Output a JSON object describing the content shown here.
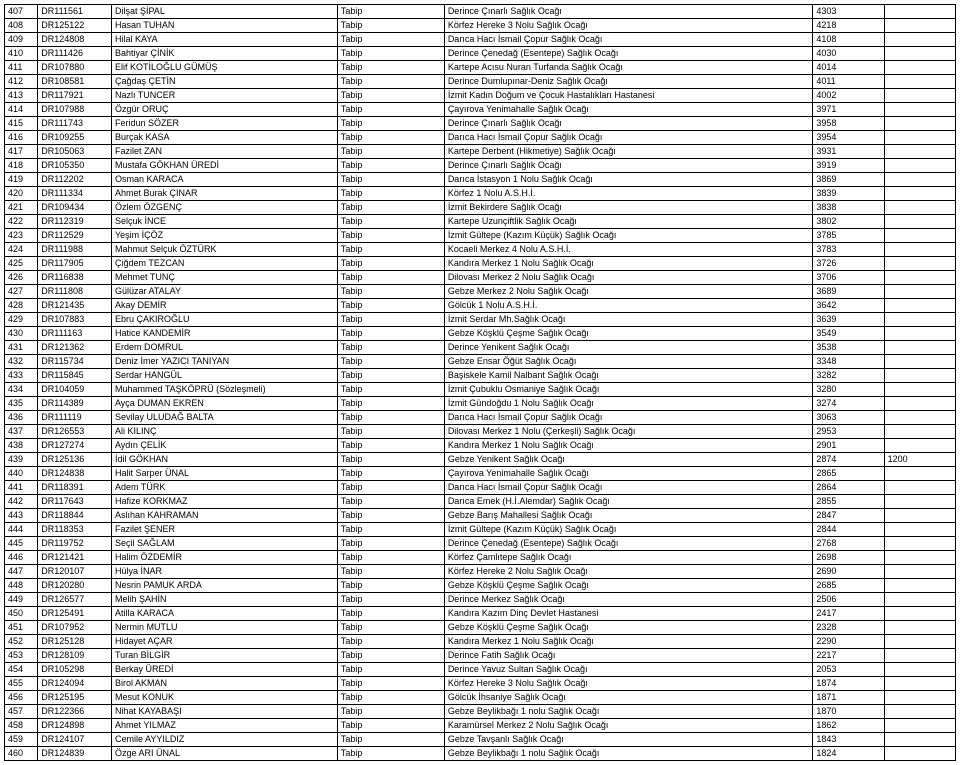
{
  "rows": [
    {
      "seq": "407",
      "id": "DR111561",
      "name": "Dilşat ŞİPAL",
      "title": "Tabip",
      "place": "Derince Çınarlı Sağlık Ocağı",
      "n1": "4303",
      "n2": ""
    },
    {
      "seq": "408",
      "id": "DR125122",
      "name": "Hasan TUHAN",
      "title": "Tabip",
      "place": "Körfez Hereke 3 Nolu Sağlık Ocağı",
      "n1": "4218",
      "n2": ""
    },
    {
      "seq": "409",
      "id": "DR124808",
      "name": "Hilal KAYA",
      "title": "Tabip",
      "place": "Darıca Hacı İsmail Çopur Sağlık Ocağı",
      "n1": "4108",
      "n2": ""
    },
    {
      "seq": "410",
      "id": "DR111426",
      "name": "Bahtiyar ÇİNİK",
      "title": "Tabip",
      "place": "Derince Çenedağ (Esentepe) Sağlık Ocağı",
      "n1": "4030",
      "n2": ""
    },
    {
      "seq": "411",
      "id": "DR107880",
      "name": "Elif KOTİLOĞLU GÜMÜŞ",
      "title": "Tabip",
      "place": "Kartepe Acısu Nuran Turfanda Sağlık Ocağı",
      "n1": "4014",
      "n2": ""
    },
    {
      "seq": "412",
      "id": "DR108581",
      "name": "Çağdaş ÇETİN",
      "title": "Tabip",
      "place": "Derince Dumlupınar-Deniz Sağlık Ocağı",
      "n1": "4011",
      "n2": ""
    },
    {
      "seq": "413",
      "id": "DR117921",
      "name": "Nazlı TUNCER",
      "title": "Tabip",
      "place": "İzmit Kadın Doğum ve Çocuk Hastalıkları Hastanesi",
      "n1": "4002",
      "n2": ""
    },
    {
      "seq": "414",
      "id": "DR107988",
      "name": "Özgür ORUÇ",
      "title": "Tabip",
      "place": "Çayırova Yenimahalle Sağlık Ocağı",
      "n1": "3971",
      "n2": ""
    },
    {
      "seq": "415",
      "id": "DR111743",
      "name": "Feridun SÖZER",
      "title": "Tabip",
      "place": "Derince Çınarlı Sağlık Ocağı",
      "n1": "3958",
      "n2": ""
    },
    {
      "seq": "416",
      "id": "DR109255",
      "name": "Burçak KASA",
      "title": "Tabip",
      "place": "Darıca Hacı İsmail Çopur Sağlık Ocağı",
      "n1": "3954",
      "n2": ""
    },
    {
      "seq": "417",
      "id": "DR105063",
      "name": "Fazilet ZAN",
      "title": "Tabip",
      "place": "Kartepe Derbent (Hikmetiye) Sağlık Ocağı",
      "n1": "3931",
      "n2": ""
    },
    {
      "seq": "418",
      "id": "DR105350",
      "name": "Mustafa GÖKHAN ÜREDİ",
      "title": "Tabip",
      "place": "Derince Çınarlı Sağlık Ocağı",
      "n1": "3919",
      "n2": ""
    },
    {
      "seq": "419",
      "id": "DR112202",
      "name": "Osman KARACA",
      "title": "Tabip",
      "place": "Darıca İstasyon 1 Nolu Sağlık Ocağı",
      "n1": "3869",
      "n2": ""
    },
    {
      "seq": "420",
      "id": "DR111334",
      "name": "Ahmet Burak ÇINAR",
      "title": "Tabip",
      "place": "Körfez 1 Nolu A.S.H.İ.",
      "n1": "3839",
      "n2": ""
    },
    {
      "seq": "421",
      "id": "DR109434",
      "name": "Özlem ÖZGENÇ",
      "title": "Tabip",
      "place": "İzmit Bekirdere Sağlık Ocağı",
      "n1": "3838",
      "n2": ""
    },
    {
      "seq": "422",
      "id": "DR112319",
      "name": "Selçuk İNCE",
      "title": "Tabip",
      "place": "Kartepe Uzunçiftlik Sağlık Ocağı",
      "n1": "3802",
      "n2": ""
    },
    {
      "seq": "423",
      "id": "DR112529",
      "name": "Yeşim İÇÖZ",
      "title": "Tabip",
      "place": "İzmit Gültepe (Kazım Küçük) Sağlık Ocağı",
      "n1": "3785",
      "n2": ""
    },
    {
      "seq": "424",
      "id": "DR111988",
      "name": "Mahmut Selçuk ÖZTÜRK",
      "title": "Tabip",
      "place": "Kocaeli Merkez 4 Nolu A.S.H.İ.",
      "n1": "3783",
      "n2": ""
    },
    {
      "seq": "425",
      "id": "DR117905",
      "name": "Çiğdem TEZCAN",
      "title": "Tabip",
      "place": "Kandıra Merkez 1 Nolu Sağlık Ocağı",
      "n1": "3726",
      "n2": ""
    },
    {
      "seq": "426",
      "id": "DR116838",
      "name": "Mehmet TUNÇ",
      "title": "Tabip",
      "place": "Dilovası Merkez 2 Nolu Sağlık Ocağı",
      "n1": "3706",
      "n2": ""
    },
    {
      "seq": "427",
      "id": "DR111808",
      "name": "Gülüzar ATALAY",
      "title": "Tabip",
      "place": "Gebze Merkez 2 Nolu Sağlık Ocağı",
      "n1": "3689",
      "n2": ""
    },
    {
      "seq": "428",
      "id": "DR121435",
      "name": "Akay DEMİR",
      "title": "Tabip",
      "place": "Gölcük 1 Nolu A.S.H.İ.",
      "n1": "3642",
      "n2": ""
    },
    {
      "seq": "429",
      "id": "DR107883",
      "name": "Ebru ÇAKIROĞLU",
      "title": "Tabip",
      "place": "İzmit Serdar Mh.Sağlık Ocağı",
      "n1": "3639",
      "n2": ""
    },
    {
      "seq": "430",
      "id": "DR111163",
      "name": "Hatice KANDEMİR",
      "title": "Tabip",
      "place": "Gebze Köşklü Çeşme Sağlık Ocağı",
      "n1": "3549",
      "n2": ""
    },
    {
      "seq": "431",
      "id": "DR121362",
      "name": "Erdem DOMRUL",
      "title": "Tabip",
      "place": "Derince Yenikent Sağlık Ocağı",
      "n1": "3538",
      "n2": ""
    },
    {
      "seq": "432",
      "id": "DR115734",
      "name": "Deniz İmer YAZICI TANIYAN",
      "title": "Tabip",
      "place": "Gebze Ensar Öğüt Sağlık Ocağı",
      "n1": "3348",
      "n2": ""
    },
    {
      "seq": "433",
      "id": "DR115845",
      "name": "Serdar HANGÜL",
      "title": "Tabip",
      "place": "Başiskele Kamil Nalbant Sağlık Ocağı",
      "n1": "3282",
      "n2": ""
    },
    {
      "seq": "434",
      "id": "DR104059",
      "name": "Muhammed TAŞKÖPRÜ (Sözleşmeli)",
      "title": "Tabip",
      "place": "İzmit Çubuklu Osmaniye Sağlık Ocağı",
      "n1": "3280",
      "n2": ""
    },
    {
      "seq": "435",
      "id": "DR114389",
      "name": "Ayça DUMAN EKREN",
      "title": "Tabip",
      "place": "İzmit Gündoğdu 1 Nolu Sağlık Ocağı",
      "n1": "3274",
      "n2": ""
    },
    {
      "seq": "436",
      "id": "DR111119",
      "name": "Sevilay ULUDAĞ BALTA",
      "title": "Tabip",
      "place": "Darıca Hacı İsmail Çopur Sağlık Ocağı",
      "n1": "3063",
      "n2": ""
    },
    {
      "seq": "437",
      "id": "DR126553",
      "name": "Ali KILINÇ",
      "title": "Tabip",
      "place": "Dilovası Merkez 1 Nolu (Çerkeşli) Sağlık Ocağı",
      "n1": "2953",
      "n2": ""
    },
    {
      "seq": "438",
      "id": "DR127274",
      "name": "Aydın ÇELİK",
      "title": "Tabip",
      "place": "Kandıra Merkez 1 Nolu Sağlık Ocağı",
      "n1": "2901",
      "n2": ""
    },
    {
      "seq": "439",
      "id": "DR125136",
      "name": "İdil GÖKHAN",
      "title": "Tabip",
      "place": "Gebze Yenikent Sağlık Ocağı",
      "n1": "2874",
      "n2": "1200"
    },
    {
      "seq": "440",
      "id": "DR124838",
      "name": "Halit Sarper ÜNAL",
      "title": "Tabip",
      "place": "Çayırova Yenimahalle Sağlık Ocağı",
      "n1": "2865",
      "n2": ""
    },
    {
      "seq": "441",
      "id": "DR118391",
      "name": "Adem TÜRK",
      "title": "Tabip",
      "place": "Darıca Hacı İsmail Çopur Sağlık Ocağı",
      "n1": "2864",
      "n2": ""
    },
    {
      "seq": "442",
      "id": "DR117643",
      "name": "Hafize KORKMAZ",
      "title": "Tabip",
      "place": "Darıca Emek (H.İ.Alemdar) Sağlık Ocağı",
      "n1": "2855",
      "n2": ""
    },
    {
      "seq": "443",
      "id": "DR118844",
      "name": "Aslıhan KAHRAMAN",
      "title": "Tabip",
      "place": "Gebze Barış Mahallesi Sağlık Ocağı",
      "n1": "2847",
      "n2": ""
    },
    {
      "seq": "444",
      "id": "DR118353",
      "name": "Fazilet ŞENER",
      "title": "Tabip",
      "place": "İzmit Gültepe (Kazım Küçük) Sağlık Ocağı",
      "n1": "2844",
      "n2": ""
    },
    {
      "seq": "445",
      "id": "DR119752",
      "name": "Seçil SAĞLAM",
      "title": "Tabip",
      "place": "Derince Çenedağ (Esentepe) Sağlık Ocağı",
      "n1": "2768",
      "n2": ""
    },
    {
      "seq": "446",
      "id": "DR121421",
      "name": "Halim ÖZDEMİR",
      "title": "Tabip",
      "place": "Körfez Çamlıtepe Sağlık Ocağı",
      "n1": "2698",
      "n2": ""
    },
    {
      "seq": "447",
      "id": "DR120107",
      "name": "Hülya İNAR",
      "title": "Tabip",
      "place": "Körfez Hereke 2 Nolu Sağlık Ocağı",
      "n1": "2690",
      "n2": ""
    },
    {
      "seq": "448",
      "id": "DR120280",
      "name": "Nesrin PAMUK ARDA",
      "title": "Tabip",
      "place": "Gebze Köşklü Çeşme Sağlık Ocağı",
      "n1": "2685",
      "n2": ""
    },
    {
      "seq": "449",
      "id": "DR126577",
      "name": "Melih ŞAHİN",
      "title": "Tabip",
      "place": "Derince Merkez Sağlık Ocağı",
      "n1": "2506",
      "n2": ""
    },
    {
      "seq": "450",
      "id": "DR125491",
      "name": "Atilla KARACA",
      "title": "Tabip",
      "place": "Kandıra Kazım Dinç Devlet Hastanesi",
      "n1": "2417",
      "n2": ""
    },
    {
      "seq": "451",
      "id": "DR107952",
      "name": "Nermin MUTLU",
      "title": "Tabip",
      "place": "Gebze Köşklü Çeşme Sağlık Ocağı",
      "n1": "2328",
      "n2": ""
    },
    {
      "seq": "452",
      "id": "DR125128",
      "name": "Hidayet AÇAR",
      "title": "Tabip",
      "place": "Kandıra Merkez 1 Nolu Sağlık Ocağı",
      "n1": "2290",
      "n2": ""
    },
    {
      "seq": "453",
      "id": "DR128109",
      "name": "Turan BİLGİR",
      "title": "Tabip",
      "place": "Derince Fatih Sağlık Ocağı",
      "n1": "2217",
      "n2": ""
    },
    {
      "seq": "454",
      "id": "DR105298",
      "name": "Berkay ÜREDİ",
      "title": "Tabip",
      "place": "Derince Yavuz Sultan Sağlık Ocağı",
      "n1": "2053",
      "n2": ""
    },
    {
      "seq": "455",
      "id": "DR124094",
      "name": "Birol AKMAN",
      "title": "Tabip",
      "place": "Körfez Hereke 3 Nolu Sağlık Ocağı",
      "n1": "1874",
      "n2": ""
    },
    {
      "seq": "456",
      "id": "DR125195",
      "name": "Mesut KONUK",
      "title": "Tabip",
      "place": "Gölcük İhsaniye Sağlık Ocağı",
      "n1": "1871",
      "n2": ""
    },
    {
      "seq": "457",
      "id": "DR122366",
      "name": "Nihat KAYABAŞI",
      "title": "Tabip",
      "place": "Gebze Beylikbağı 1 nolu Sağlık Ocağı",
      "n1": "1870",
      "n2": ""
    },
    {
      "seq": "458",
      "id": "DR124898",
      "name": "Ahmet YILMAZ",
      "title": "Tabip",
      "place": "Karamürsel Merkez 2 Nolu Sağlık Ocağı",
      "n1": "1862",
      "n2": ""
    },
    {
      "seq": "459",
      "id": "DR124107",
      "name": "Cemile AYYILDIZ",
      "title": "Tabip",
      "place": "Gebze Tavşanlı Sağlık Ocağı",
      "n1": "1843",
      "n2": ""
    },
    {
      "seq": "460",
      "id": "DR124839",
      "name": "Özge ARI ÜNAL",
      "title": "Tabip",
      "place": "Gebze Beylikbağı 1 nolu Sağlık Ocağı",
      "n1": "1824",
      "n2": ""
    }
  ]
}
